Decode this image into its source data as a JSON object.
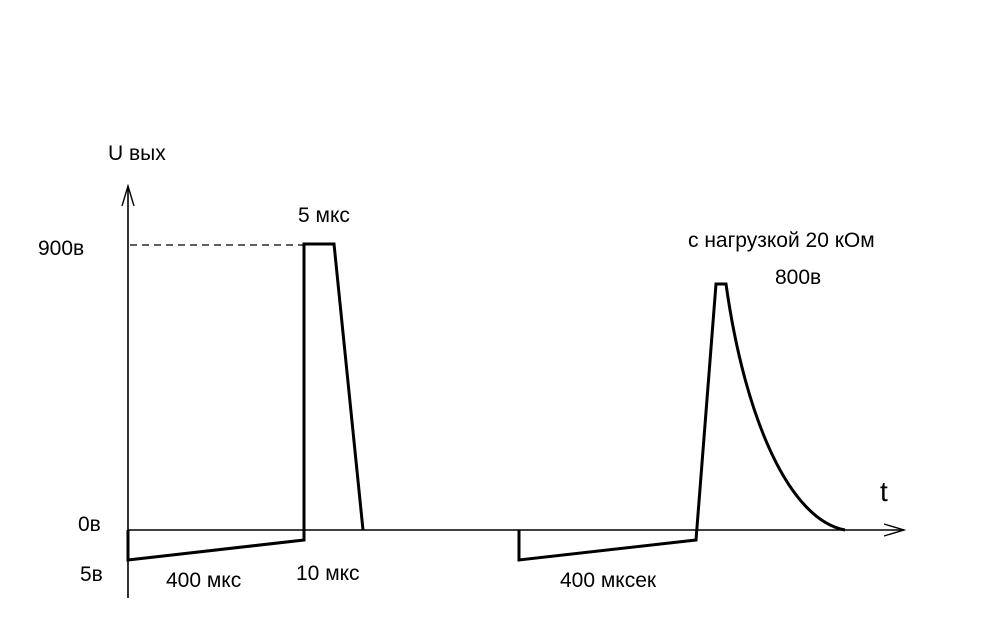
{
  "diagram": {
    "y_axis_label": "U вых",
    "x_axis_label": "t",
    "level_900": "900в",
    "level_zero": "0в",
    "level_neg": "5в",
    "pulse_top_duration": "5 мкс",
    "ramp1_duration": "400 мкс",
    "fall_duration": "10 мкс",
    "load_note": "с нагрузкой 20 кОм",
    "load_peak": "800в",
    "ramp2_duration": "400 мксек"
  },
  "colors": {
    "line": "#000000",
    "background": "#ffffff"
  }
}
